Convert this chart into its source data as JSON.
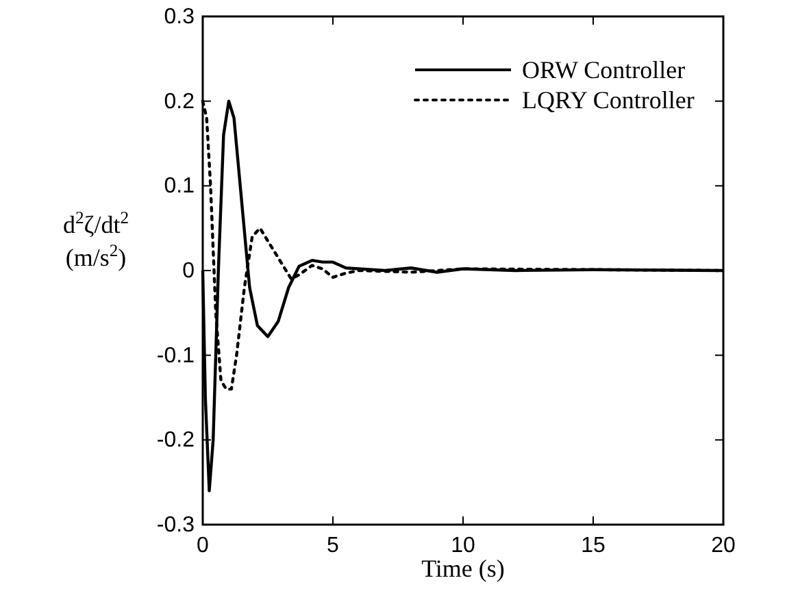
{
  "chart_data": {
    "type": "line",
    "xlabel": "Time (s)",
    "ylabel": "d$^{2}$ζ/dt$^{2}$\n(m/s$^{2}$)",
    "xlim": [
      0,
      20
    ],
    "ylim": [
      -0.3,
      0.3
    ],
    "xticks": [
      0,
      5,
      10,
      15,
      20
    ],
    "yticks": [
      -0.3,
      -0.2,
      -0.1,
      0,
      0.1,
      0.2,
      0.3
    ],
    "grid": false,
    "legend": "top right",
    "x": [
      0,
      0.1,
      0.25,
      0.4,
      0.6,
      0.8,
      1.0,
      1.2,
      1.5,
      1.8,
      2.1,
      2.5,
      2.9,
      3.3,
      3.7,
      4.2,
      4.6,
      5,
      5.5,
      6,
      7,
      8,
      9,
      10,
      12,
      15,
      20
    ],
    "series": [
      {
        "name": "ORW Controller",
        "color": "#000000",
        "line_style": "solid",
        "values": [
          0,
          -0.15,
          -0.26,
          -0.2,
          0,
          0.16,
          0.2,
          0.18,
          0.08,
          -0.02,
          -0.065,
          -0.078,
          -0.06,
          -0.02,
          0.005,
          0.012,
          0.01,
          0.01,
          0.003,
          0.002,
          0,
          0.003,
          -0.002,
          0.002,
          0,
          0.001,
          0
        ]
      },
      {
        "name": "LQRY Controller",
        "color": "#000000",
        "line_style": "dotted",
        "x": [
          0,
          0.15,
          0.3,
          0.5,
          0.7,
          0.9,
          1.1,
          1.3,
          1.6,
          1.9,
          2.2,
          2.6,
          3.0,
          3.4,
          3.7,
          4.2,
          4.6,
          5,
          5.5,
          6,
          8,
          10,
          20
        ],
        "values": [
          0.2,
          0.18,
          0.1,
          -0.05,
          -0.13,
          -0.14,
          -0.14,
          -0.1,
          -0.02,
          0.04,
          0.05,
          0.03,
          0.01,
          -0.01,
          -0.005,
          0.006,
          0.002,
          -0.008,
          -0.003,
          0,
          -0.002,
          0.002,
          0
        ]
      }
    ]
  }
}
